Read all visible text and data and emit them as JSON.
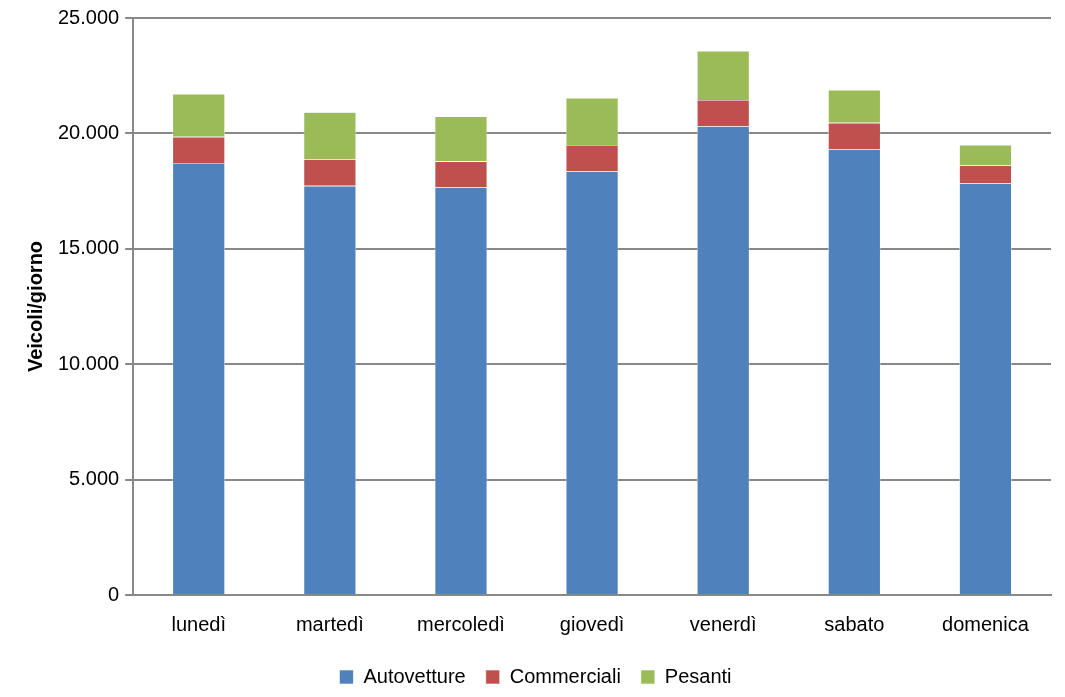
{
  "chart_data": {
    "type": "bar",
    "stacked": true,
    "ylabel": "Veicoli/giorno",
    "categories": [
      "lunedì",
      "martedì",
      "mercoledì",
      "giovedì",
      "venerdì",
      "sabato",
      "domenica"
    ],
    "series": [
      {
        "name": "Autovetture",
        "color": "#4f81bd",
        "values": [
          18720,
          17730,
          17660,
          18350,
          20310,
          19320,
          17830
        ]
      },
      {
        "name": "Commerciali",
        "color": "#c0504d",
        "values": [
          1130,
          1150,
          1130,
          1150,
          1140,
          1140,
          780
        ]
      },
      {
        "name": "Pesanti",
        "color": "#9bbb59",
        "values": [
          1860,
          2040,
          1950,
          2040,
          2120,
          1420,
          890
        ]
      }
    ],
    "ylim": [
      0,
      25000
    ],
    "yticks": [
      {
        "value": 0,
        "label": "0"
      },
      {
        "value": 5000,
        "label": "5.000"
      },
      {
        "value": 10000,
        "label": "10.000"
      },
      {
        "value": 15000,
        "label": "15.000"
      },
      {
        "value": 20000,
        "label": "20.000"
      },
      {
        "value": 25000,
        "label": "25.000"
      }
    ],
    "grid": "y",
    "legend": "bottom"
  }
}
